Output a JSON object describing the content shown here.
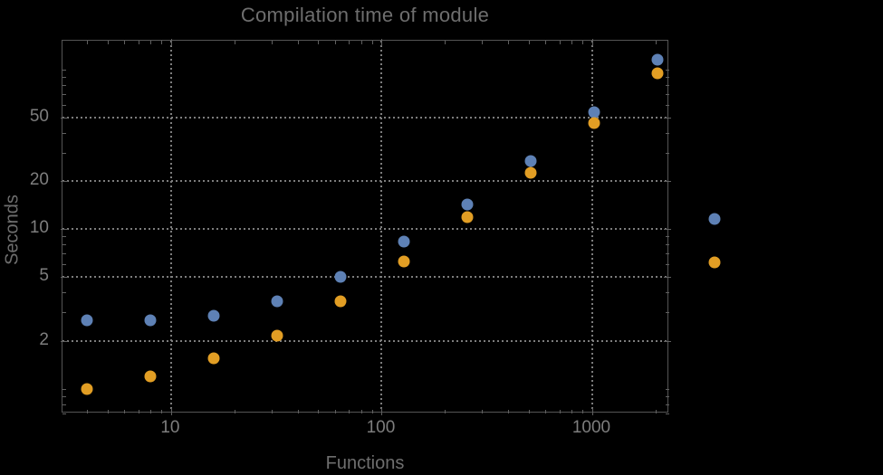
{
  "chart_data": {
    "type": "scatter",
    "title": "Compilation time of module",
    "xlabel": "Functions",
    "ylabel": "Seconds",
    "xscale": "log",
    "yscale": "log",
    "xlim": [
      3.05,
      2320
    ],
    "ylim": [
      0.7,
      151
    ],
    "grid": "dotted",
    "legend_position": "right-outside",
    "x": [
      4,
      8,
      16,
      32,
      64,
      128,
      256,
      512,
      1024,
      2048
    ],
    "series": [
      {
        "name": "blue",
        "color": "#5E81B5",
        "values": [
          2.7,
          2.7,
          2.85,
          3.55,
          5.0,
          8.3,
          14.2,
          26.5,
          54,
          115
        ]
      },
      {
        "name": "orange",
        "color": "#E29E24",
        "values": [
          1.0,
          1.2,
          1.55,
          2.15,
          3.55,
          6.3,
          11.8,
          22.5,
          46,
          95
        ]
      }
    ],
    "x_ticks": [
      {
        "value": 10,
        "label": "10"
      },
      {
        "value": 100,
        "label": "100"
      },
      {
        "value": 1000,
        "label": "1000"
      }
    ],
    "y_ticks": [
      {
        "value": 50,
        "label": "50"
      },
      {
        "value": 20,
        "label": "20"
      },
      {
        "value": 10,
        "label": "10"
      },
      {
        "value": 5,
        "label": "5"
      },
      {
        "value": 2,
        "label": "2"
      }
    ],
    "gridlines_x": [
      10,
      100,
      1000
    ],
    "gridlines_y": [
      2,
      5,
      10,
      20,
      50
    ]
  },
  "legend": {
    "markers": [
      {
        "series": "blue",
        "color": "#5E81B5"
      },
      {
        "series": "orange",
        "color": "#E29E24"
      }
    ]
  },
  "colors": {
    "background": "#000000",
    "frame": "#555555",
    "grid": "#7d7d7d",
    "tick_label": "#7e7e7e",
    "axis_label": "#6e6e6e",
    "title": "#6e6e6e",
    "series_blue": "#5E81B5",
    "series_orange": "#E29E24"
  }
}
